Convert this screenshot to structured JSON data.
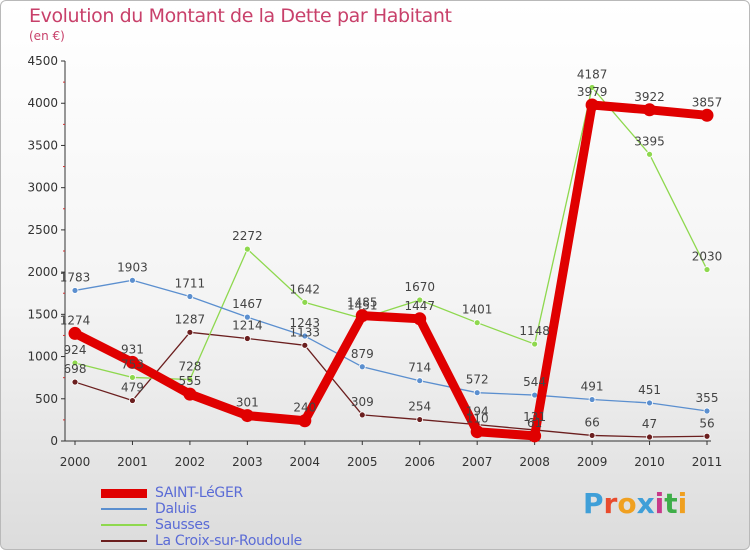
{
  "header": {
    "title": "Evolution du Montant de la Dette par Habitant",
    "subtitle": "(en €)"
  },
  "brand": {
    "text": "Proxiti",
    "colors": [
      "#3f9fd8",
      "#e94b2d",
      "#f0a020",
      "#3f9fd8",
      "#c83a8a",
      "#3fae49",
      "#f0a020"
    ]
  },
  "chart_data": {
    "type": "line",
    "title": "Evolution du Montant de la Dette par Habitant",
    "subtitle": "(en €)",
    "x": [
      "2000",
      "2001",
      "2002",
      "2003",
      "2004",
      "2005",
      "2006",
      "2007",
      "2008",
      "2009",
      "2010",
      "2011"
    ],
    "ylim": [
      0,
      4500
    ],
    "yticks": [
      0,
      500,
      1000,
      1500,
      2000,
      2500,
      3000,
      3500,
      4000,
      4500
    ],
    "grid": false,
    "legend": "bottom-left",
    "series": [
      {
        "name": "SAINT-LéGER",
        "color": "#e00000",
        "values": [
          1274,
          931,
          555,
          301,
          240,
          1485,
          1447,
          110,
          61,
          3979,
          3922,
          3857
        ]
      },
      {
        "name": "Daluis",
        "color": "#5b8fcf",
        "values": [
          1783,
          1903,
          1711,
          1467,
          1243,
          879,
          714,
          572,
          544,
          491,
          451,
          355
        ]
      },
      {
        "name": "Sausses",
        "color": "#8ed84e",
        "values": [
          924,
          753,
          728,
          2272,
          1642,
          1451,
          1670,
          1401,
          1148,
          4187,
          3395,
          2030
        ]
      },
      {
        "name": "La Croix-sur-Roudoule",
        "color": "#6b1f1f",
        "values": [
          698,
          479,
          1287,
          1214,
          1133,
          309,
          254,
          194,
          131,
          66,
          47,
          56
        ]
      }
    ]
  }
}
